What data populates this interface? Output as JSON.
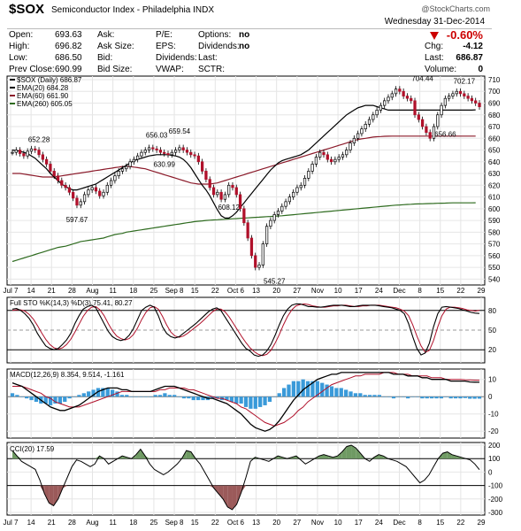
{
  "header": {
    "symbol": "$SOX",
    "name": "Semiconductor Index - Philadelphia INDX",
    "brand": "@StockCharts.com",
    "date": "Wednesday  31-Dec-2014",
    "change_pct": "-0.60%",
    "col1": [
      {
        "label": "Open:",
        "value": "693.63"
      },
      {
        "label": "High:",
        "value": "696.82"
      },
      {
        "label": "Low:",
        "value": "686.50"
      },
      {
        "label": "Prev Close:",
        "value": "690.99"
      }
    ],
    "col2": [
      "Ask:",
      "Ask Size:",
      "Bid:",
      "Bid Size:"
    ],
    "col3": [
      "P/E:",
      "EPS:",
      "Dividends:",
      "VWAP:"
    ],
    "col4": [
      {
        "label": "Options:",
        "value": "no"
      },
      {
        "label": "Dividends:",
        "value": "no"
      },
      {
        "label": "Last:",
        "value": ""
      },
      {
        "label": "SCTR:",
        "value": ""
      }
    ],
    "col5": [
      {
        "label": "Chg:",
        "value": "-4.12"
      },
      {
        "label": "Last:",
        "value": "686.87"
      },
      {
        "label": "Volume:",
        "value": "0"
      }
    ]
  },
  "chart_data": [
    {
      "panel": "price",
      "type": "candlestick",
      "legend": [
        "$SOX (Daily) 686.87",
        "EMA(20) 684.28",
        "EMA(60) 661.90",
        "EMA(260) 605.05"
      ],
      "legend_colors": [
        "#000000",
        "#000000",
        "#8b1a2a",
        "#2e6b1f"
      ],
      "y_ticks": [
        540,
        550,
        560,
        570,
        580,
        590,
        600,
        610,
        620,
        630,
        640,
        650,
        660,
        670,
        680,
        690,
        700,
        710
      ],
      "ylim": [
        535,
        713
      ],
      "x_ticks": [
        "Jul 7",
        "14",
        "21",
        "28",
        "Aug",
        "11",
        "18",
        "25",
        "Sep 8",
        "15",
        "22",
        "Oct 6",
        "13",
        "20",
        "27",
        "Nov",
        "10",
        "17",
        "24",
        "Dec",
        "8",
        "15",
        "22",
        "29"
      ],
      "annotations": [
        {
          "text": "652.28",
          "day": 7,
          "value": 652.28
        },
        {
          "text": "597.67",
          "day": 17,
          "value": 597.67
        },
        {
          "text": "656.03",
          "day": 38,
          "value": 656.03
        },
        {
          "text": "659.54",
          "day": 44,
          "value": 659.54
        },
        {
          "text": "630.99",
          "day": 40,
          "value": 630.99
        },
        {
          "text": "608.12",
          "day": 57,
          "value": 608.12
        },
        {
          "text": "545.27",
          "day": 69,
          "value": 545.27
        },
        {
          "text": "704.44",
          "day": 108,
          "value": 704.44
        },
        {
          "text": "702.17",
          "day": 119,
          "value": 702.17
        },
        {
          "text": "656.66",
          "day": 114,
          "value": 656.66
        }
      ],
      "close": [
        648,
        650,
        647,
        645,
        649,
        651,
        650,
        646,
        642,
        638,
        632,
        628,
        624,
        620,
        618,
        614,
        609,
        603,
        606,
        612,
        616,
        618,
        615,
        611,
        614,
        620,
        624,
        628,
        632,
        634,
        636,
        640,
        642,
        645,
        648,
        650,
        652,
        651,
        650,
        648,
        647,
        646,
        648,
        650,
        652,
        650,
        648,
        646,
        645,
        640,
        632,
        625,
        618,
        612,
        614,
        608,
        612,
        620,
        618,
        612,
        600,
        588,
        575,
        560,
        550,
        552,
        570,
        585,
        590,
        595,
        598,
        602,
        606,
        610,
        614,
        618,
        620,
        626,
        632,
        638,
        644,
        648,
        646,
        642,
        640,
        642,
        644,
        646,
        650,
        656,
        660,
        664,
        668,
        672,
        676,
        680,
        684,
        688,
        692,
        695,
        698,
        702,
        700,
        696,
        694,
        692,
        680,
        676,
        670,
        665,
        660,
        670,
        680,
        688,
        694,
        696,
        698,
        700,
        698,
        696,
        694,
        692,
        690,
        686.87
      ],
      "ema20": [
        650,
        649.5,
        649,
        648,
        647,
        645,
        643,
        640,
        637,
        634,
        630,
        627,
        624,
        621,
        619,
        617,
        616,
        616,
        617,
        618,
        619,
        620,
        621,
        623,
        625,
        627,
        629,
        631,
        633,
        635,
        637,
        639,
        641,
        642,
        643,
        644,
        645,
        645.5,
        646,
        646,
        646,
        646,
        645.5,
        645,
        644,
        642,
        639,
        635,
        630,
        625,
        620,
        616,
        611,
        605,
        599,
        594,
        592,
        592,
        594,
        597,
        601,
        605,
        609,
        613,
        617,
        621,
        625,
        629,
        633,
        636,
        639,
        641,
        642,
        643,
        644,
        645,
        646,
        648,
        650,
        653,
        656,
        659,
        662,
        665,
        668,
        671,
        674,
        677,
        680,
        682,
        684,
        686,
        687,
        688,
        688,
        688,
        687,
        686,
        685,
        684,
        684,
        684,
        684,
        684,
        684,
        684,
        684,
        684,
        684,
        684,
        684,
        684,
        684,
        684,
        684,
        684,
        684,
        684,
        684,
        684,
        684,
        684,
        684.28
      ],
      "ema60": [
        630,
        630,
        630,
        629.5,
        629,
        628.5,
        628,
        627.5,
        627,
        627,
        627,
        627,
        627.5,
        628,
        628.5,
        629,
        629.5,
        630,
        630.5,
        631,
        631.5,
        632,
        632.5,
        633,
        633.5,
        634,
        634.5,
        635,
        635.5,
        636,
        636,
        636,
        635.5,
        635,
        634.5,
        634,
        633,
        632,
        631,
        630,
        629,
        628,
        627,
        626,
        625,
        624,
        623,
        622,
        621.5,
        621,
        621,
        621,
        621,
        621.5,
        622,
        623,
        624,
        625,
        626,
        627,
        628,
        629,
        630,
        631,
        632,
        633,
        634,
        635,
        636,
        637,
        638,
        639,
        640,
        641,
        642,
        643,
        644,
        645,
        646,
        647,
        648,
        649,
        650,
        651,
        652,
        653,
        654,
        655,
        656,
        657,
        658,
        659,
        659.5,
        660,
        660.5,
        661,
        661.3,
        661.5,
        661.7,
        661.8,
        661.9,
        661.9,
        661.9,
        661.9,
        661.9,
        661.9,
        661.9,
        661.9,
        661.9,
        661.9,
        661.9,
        661.9,
        661.9,
        661.9,
        661.9,
        661.9,
        661.9,
        661.9,
        661.9,
        661.9,
        661.9,
        661.9,
        661.9
      ],
      "ema260": [
        555,
        556,
        557,
        558,
        559,
        560,
        561,
        562,
        563,
        564,
        565,
        566,
        567,
        567.5,
        568,
        569,
        570,
        571,
        572,
        572.5,
        573,
        573.5,
        574,
        574.5,
        575,
        576,
        577,
        578,
        578.5,
        579,
        580,
        580.5,
        581,
        581.5,
        582,
        582.5,
        583,
        583.5,
        584,
        584.5,
        585,
        585.5,
        586,
        586.5,
        587,
        587.5,
        588,
        588.5,
        589,
        589.3,
        589.6,
        590,
        590.2,
        590.4,
        590.6,
        590.8,
        591,
        591.2,
        591.4,
        591.6,
        591.8,
        592,
        592.2,
        592.4,
        592.6,
        592.8,
        593,
        593.2,
        593.4,
        593.6,
        593.8,
        594,
        594.3,
        594.6,
        594.9,
        595.2,
        595.5,
        595.8,
        596.1,
        596.4,
        596.7,
        597,
        597.3,
        597.6,
        597.9,
        598.2,
        598.5,
        598.8,
        599.1,
        599.4,
        599.7,
        600,
        600.3,
        600.6,
        600.9,
        601.2,
        601.5,
        601.8,
        602.1,
        602.4,
        602.7,
        603,
        603.2,
        603.4,
        603.6,
        603.8,
        604,
        604.1,
        604.2,
        604.3,
        604.4,
        604.5,
        604.6,
        604.7,
        604.8,
        604.9,
        605,
        605,
        605,
        605,
        605,
        605,
        605.05
      ]
    },
    {
      "panel": "full_sto",
      "type": "line",
      "legend": "Full STO %K(14,3) %D(3) 75.41, 80.27",
      "y_ticks": [
        20,
        50,
        80
      ],
      "ylim": [
        0,
        100
      ],
      "k_values": [
        82,
        83,
        80,
        75,
        68,
        58,
        45,
        35,
        26,
        22,
        20,
        22,
        28,
        35,
        45,
        60,
        72,
        82,
        86,
        88,
        84,
        72,
        60,
        48,
        40,
        36,
        34,
        36,
        42,
        52,
        66,
        80,
        85,
        88,
        85,
        72,
        55,
        45,
        40,
        38,
        40,
        45,
        50,
        55,
        60,
        66,
        72,
        78,
        82,
        84,
        80,
        70,
        60,
        50,
        40,
        30,
        22,
        18,
        12,
        10,
        12,
        18,
        28,
        42,
        58,
        72,
        82,
        88,
        90,
        90,
        88,
        86,
        86,
        85,
        85,
        86,
        87,
        88,
        88,
        88,
        87,
        86,
        86,
        87,
        88,
        88,
        88,
        88,
        87,
        86,
        85,
        84,
        82,
        80,
        75,
        60,
        40,
        22,
        12,
        15,
        30,
        55,
        75,
        85,
        86,
        85,
        84,
        83,
        81,
        79,
        77,
        76,
        75.41
      ],
      "d_values": [
        80,
        81,
        81,
        79,
        74,
        67,
        57,
        46,
        36,
        28,
        23,
        21,
        23,
        28,
        36,
        47,
        59,
        71,
        80,
        85,
        86,
        81,
        72,
        60,
        49,
        41,
        37,
        35,
        37,
        43,
        53,
        66,
        77,
        84,
        86,
        82,
        71,
        58,
        47,
        41,
        39,
        41,
        45,
        50,
        55,
        60,
        66,
        72,
        78,
        82,
        82,
        78,
        70,
        60,
        50,
        40,
        31,
        23,
        17,
        13,
        11,
        13,
        19,
        30,
        43,
        58,
        71,
        81,
        87,
        89,
        90,
        89,
        87,
        86,
        85,
        85,
        86,
        87,
        87,
        88,
        88,
        87,
        86,
        86,
        87,
        87,
        88,
        88,
        88,
        87,
        86,
        85,
        84,
        82,
        79,
        72,
        58,
        41,
        26,
        16,
        19,
        34,
        55,
        72,
        82,
        85,
        85,
        84,
        83,
        81,
        80,
        79,
        80.27
      ]
    },
    {
      "panel": "macd",
      "type": "line",
      "legend": "MACD(12,26,9) 8.354, 9.514, -1.161",
      "y_ticks": [
        -20,
        -10,
        0,
        10
      ],
      "ylim": [
        -24,
        16
      ],
      "macd": [
        8,
        7,
        6,
        4,
        2,
        0,
        -2,
        -4,
        -6,
        -7,
        -8,
        -8,
        -7,
        -6,
        -5,
        -3,
        -1,
        1,
        3,
        4,
        5,
        5,
        5,
        4,
        4,
        3,
        3,
        3,
        3,
        3,
        4,
        5,
        6,
        6,
        6,
        5,
        4,
        3,
        2,
        1,
        0,
        -1,
        -1,
        -2,
        -3,
        -4,
        -6,
        -8,
        -10,
        -13,
        -16,
        -18,
        -19,
        -20,
        -19,
        -17,
        -14,
        -10,
        -6,
        -2,
        1,
        4,
        6,
        8,
        10,
        11,
        12,
        13,
        13,
        14,
        14,
        14,
        14,
        14,
        14,
        14,
        14,
        14,
        14,
        14,
        13,
        13,
        13,
        12,
        12,
        12,
        11,
        11,
        10,
        10,
        10,
        10,
        9,
        9,
        9,
        9,
        8.5,
        8.4,
        8.354
      ],
      "signal": [
        6,
        6,
        6,
        5,
        4,
        3,
        2,
        0,
        -1,
        -3,
        -4,
        -5,
        -6,
        -6,
        -6,
        -5,
        -4,
        -3,
        -2,
        -1,
        0,
        1,
        2,
        3,
        3,
        3,
        3,
        3,
        3,
        3,
        3,
        4,
        4,
        5,
        5,
        5,
        5,
        4,
        4,
        3,
        2,
        1,
        0,
        -1,
        -1,
        -2,
        -3,
        -4,
        -6,
        -7,
        -9,
        -11,
        -13,
        -15,
        -16,
        -17,
        -16,
        -15,
        -13,
        -11,
        -8,
        -6,
        -3,
        -1,
        1,
        3,
        5,
        7,
        8,
        9,
        10,
        11,
        12,
        12,
        13,
        13,
        13,
        13,
        14,
        14,
        14,
        13,
        13,
        13,
        12,
        12,
        12,
        12,
        11,
        11,
        11,
        10,
        10,
        10,
        10,
        9.8,
        9.7,
        9.6,
        9.514
      ]
    },
    {
      "panel": "cci",
      "type": "line",
      "legend": "CCI(20) 17.59",
      "y_ticks": [
        -300,
        -200,
        -100,
        0,
        100,
        200
      ],
      "ylim": [
        -320,
        220
      ],
      "values": [
        160,
        120,
        80,
        60,
        40,
        20,
        -60,
        -160,
        -230,
        -250,
        -200,
        -120,
        -40,
        40,
        90,
        80,
        60,
        40,
        60,
        120,
        100,
        60,
        80,
        100,
        120,
        110,
        100,
        130,
        170,
        120,
        60,
        20,
        0,
        -20,
        0,
        30,
        60,
        100,
        160,
        150,
        100,
        60,
        0,
        -60,
        -120,
        -160,
        -200,
        -260,
        -280,
        -240,
        -150,
        -40,
        80,
        110,
        100,
        90,
        80,
        100,
        120,
        110,
        100,
        110,
        120,
        90,
        60,
        80,
        100,
        120,
        130,
        120,
        110,
        120,
        150,
        190,
        200,
        180,
        140,
        100,
        80,
        110,
        130,
        120,
        100,
        90,
        80,
        60,
        40,
        0,
        -40,
        -80,
        -60,
        -20,
        40,
        100,
        140,
        150,
        130,
        120,
        110,
        100,
        90,
        60,
        17.59
      ]
    }
  ]
}
